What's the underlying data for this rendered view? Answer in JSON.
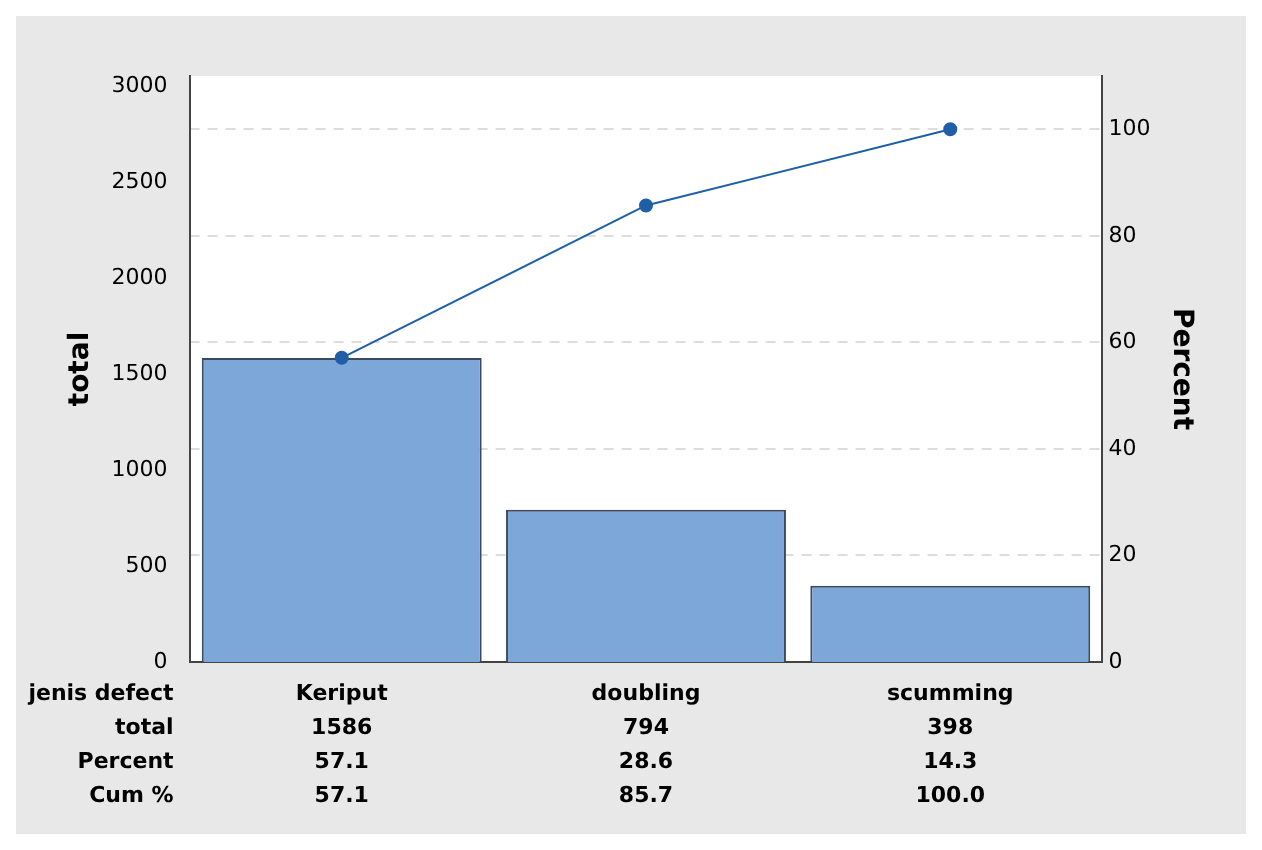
{
  "chart_data": {
    "type": "bar",
    "xlabel": "jenis defect",
    "ylabel": "total",
    "y2label": "Percent",
    "categories": [
      "Keriput",
      "doubling",
      "scumming"
    ],
    "series": [
      {
        "color": "#7da7d9",
        "values": [
          1586,
          794,
          398
        ],
        "value_labels": [
          "1586",
          "794",
          "398"
        ]
      },
      {
        "type": "line",
        "axis": "y2",
        "color": "#1f5fa8",
        "values": [
          57.1,
          85.7,
          100.0
        ],
        "value_labels": [
          "57.1",
          "85.7",
          "100.0"
        ]
      }
    ],
    "ylim": [
      0,
      3056
    ],
    "yticks": [
      0,
      500,
      1000,
      1500,
      2000,
      2500,
      3000
    ],
    "y2lim": [
      0,
      110
    ],
    "y2ticks": [
      0,
      20,
      40,
      60,
      80,
      100
    ],
    "grid": "y",
    "marker": "circle",
    "legend": false,
    "annotations": [
      "total",
      "Percent",
      "Cum %",
      "57.1",
      "28.6",
      "14.3"
    ]
  }
}
